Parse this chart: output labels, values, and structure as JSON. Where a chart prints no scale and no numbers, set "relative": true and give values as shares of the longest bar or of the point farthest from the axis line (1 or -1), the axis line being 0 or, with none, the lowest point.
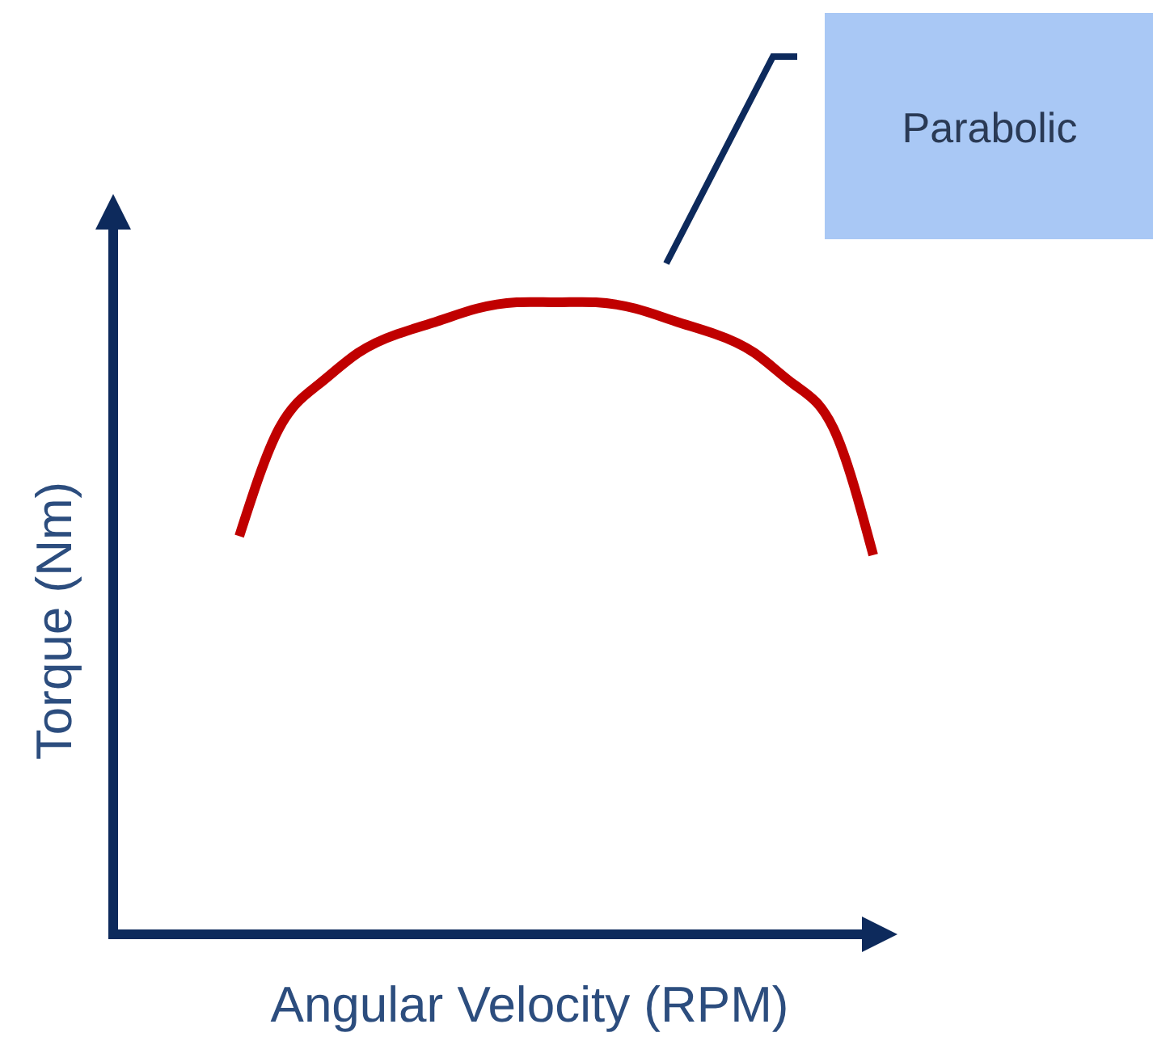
{
  "chart_data": {
    "type": "line",
    "relative": true,
    "xlabel": "Angular Velocity (RPM)",
    "ylabel": "Torque (Nm)",
    "annotations": [
      "Parabolic"
    ],
    "categories": [
      null,
      null,
      null,
      null,
      null,
      null,
      null,
      null,
      null,
      null,
      null,
      null,
      null,
      null,
      null,
      null,
      null
    ],
    "series": [
      {
        "color": "#c00000",
        "values": [
          0.63,
          0.8,
          0.87,
          0.92,
          0.95,
          0.97,
          0.99,
          1.0,
          1.0,
          1.0,
          0.99,
          0.97,
          0.95,
          0.92,
          0.87,
          0.8,
          0.6
        ]
      }
    ]
  }
}
